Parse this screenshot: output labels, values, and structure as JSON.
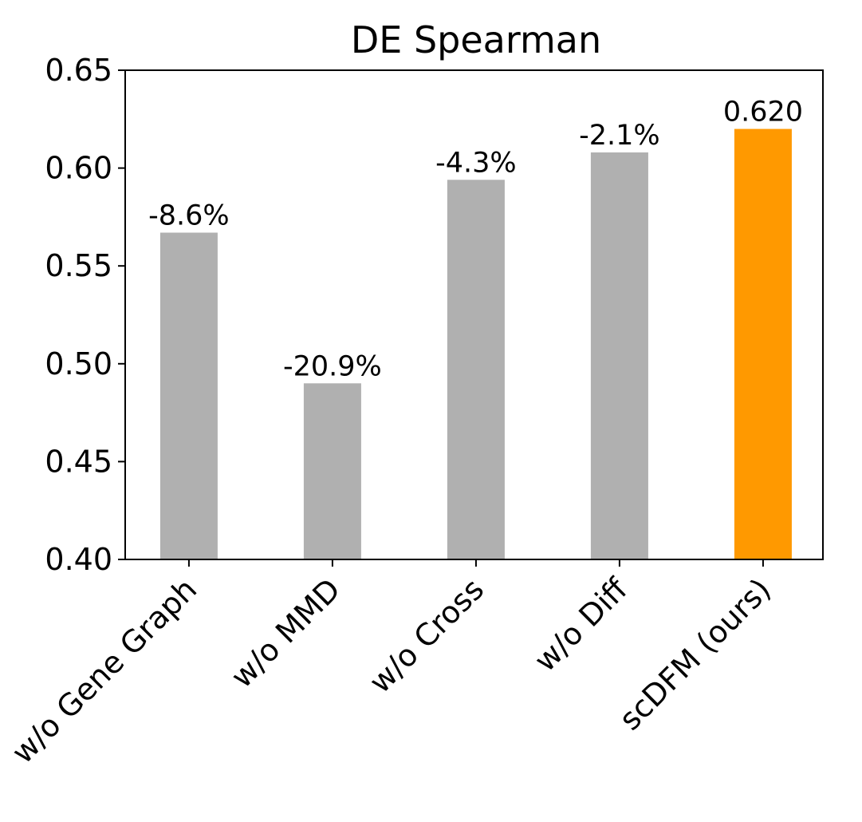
{
  "chart_data": {
    "type": "bar",
    "title": "DE Spearman",
    "categories": [
      "w/o Gene Graph",
      "w/o MMD",
      "w/o Cross",
      "w/o Diff",
      "scDFM (ours)"
    ],
    "values": [
      0.567,
      0.49,
      0.594,
      0.608,
      0.62
    ],
    "bar_labels": [
      "-8.6%",
      "-20.9%",
      "-4.3%",
      "-2.1%",
      "0.620"
    ],
    "colors": [
      "#b0b0b0",
      "#b0b0b0",
      "#b0b0b0",
      "#b0b0b0",
      "#ff9900"
    ],
    "ylim": [
      0.4,
      0.65
    ],
    "yticks": [
      {
        "value": 0.4,
        "label": "0.40"
      },
      0.45,
      {
        "value": 0.5,
        "label": "0.50"
      },
      0.55,
      {
        "value": 0.6,
        "label": "0.60"
      },
      0.65
    ],
    "grid": false
  }
}
